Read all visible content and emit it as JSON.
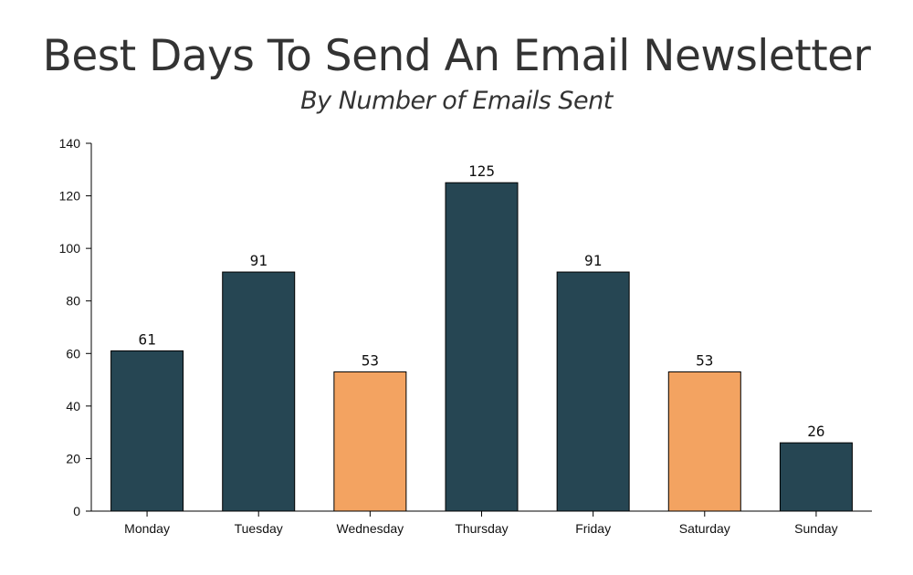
{
  "chart_data": {
    "type": "bar",
    "title": "Best Days To Send An Email Newsletter",
    "subtitle": "By Number of Emails Sent",
    "xlabel": "",
    "ylabel": "",
    "categories": [
      "Monday",
      "Tuesday",
      "Wednesday",
      "Thursday",
      "Friday",
      "Saturday",
      "Sunday"
    ],
    "values": [
      61,
      91,
      53,
      125,
      91,
      53,
      26
    ],
    "bar_colors": [
      "#264653",
      "#264653",
      "#f3a361",
      "#264653",
      "#264653",
      "#f3a361",
      "#264653"
    ],
    "ylim": [
      0,
      140
    ],
    "yticks": [
      0,
      20,
      40,
      60,
      80,
      100,
      120,
      140
    ],
    "grid": false,
    "data_labels": true
  }
}
